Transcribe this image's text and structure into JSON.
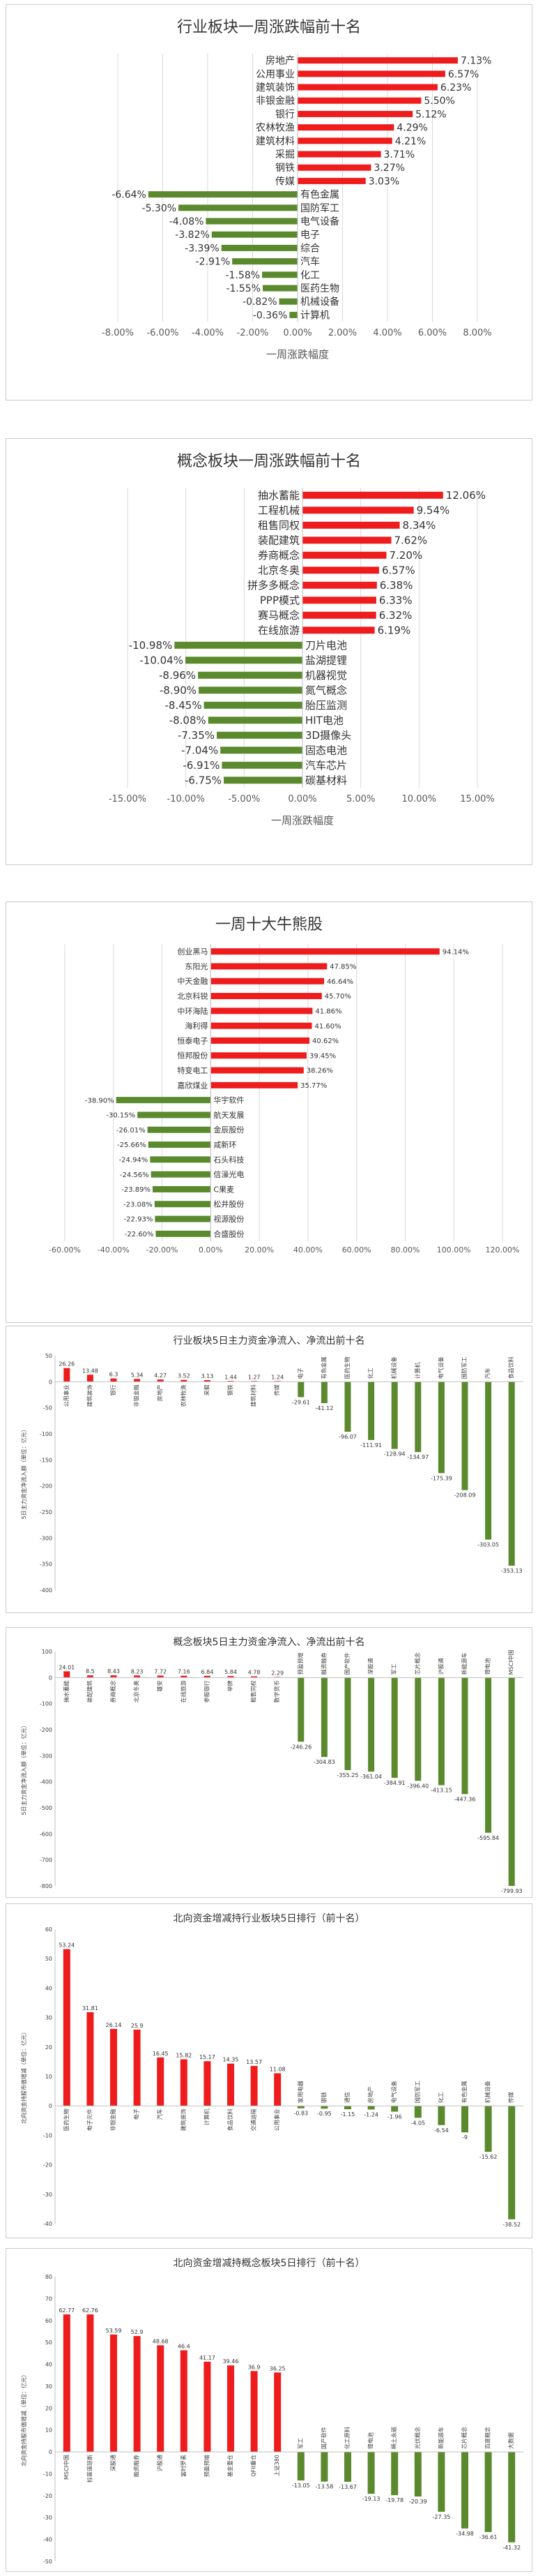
{
  "chart_data": [
    {
      "type": "bar",
      "orientation": "horizontal",
      "title": "行业板块一周涨跌幅前十名",
      "xlabel": "一周涨跌幅度",
      "xlim": [
        -8,
        8
      ],
      "xticks": [
        -8,
        -6,
        -4,
        -2,
        0,
        2,
        4,
        6,
        8
      ],
      "xtick_labels": [
        "-8.00%",
        "-6.00%",
        "-4.00%",
        "-2.00%",
        "0.00%",
        "2.00%",
        "4.00%",
        "6.00%",
        "8.00%"
      ],
      "categories": [
        "房地产",
        "公用事业",
        "建筑装饰",
        "非银金融",
        "银行",
        "农林牧渔",
        "建筑材料",
        "采掘",
        "钢铁",
        "传媒",
        "有色金属",
        "国防军工",
        "电气设备",
        "电子",
        "综合",
        "汽车",
        "化工",
        "医药生物",
        "机械设备",
        "计算机"
      ],
      "values": [
        7.13,
        6.57,
        6.23,
        5.5,
        5.12,
        4.29,
        4.21,
        3.71,
        3.27,
        3.03,
        -6.64,
        -5.3,
        -4.08,
        -3.82,
        -3.39,
        -2.91,
        -1.58,
        -1.55,
        -0.82,
        -0.36
      ],
      "labels": [
        "7.13%",
        "6.57%",
        "6.23%",
        "5.50%",
        "5.12%",
        "4.29%",
        "4.21%",
        "3.71%",
        "3.27%",
        "3.03%",
        "-6.64%",
        "-5.30%",
        "-4.08%",
        "-3.82%",
        "-3.39%",
        "-2.91%",
        "-1.58%",
        "-1.55%",
        "-0.82%",
        "-0.36%"
      ],
      "colors": {
        "positive": "#ee1c1c",
        "negative": "#5a8a2d"
      },
      "grid": true
    },
    {
      "type": "bar",
      "orientation": "horizontal",
      "title": "概念板块一周涨跌幅前十名",
      "xlabel": "一周涨跌幅度",
      "xlim": [
        -15,
        15
      ],
      "xticks": [
        -15,
        -10,
        -5,
        0,
        5,
        10,
        15
      ],
      "xtick_labels": [
        "-15.00%",
        "-10.00%",
        "-5.00%",
        "0.00%",
        "5.00%",
        "10.00%",
        "15.00%"
      ],
      "categories": [
        "抽水蓄能",
        "工程机械",
        "租售同权",
        "装配建筑",
        "券商概念",
        "北京冬奥",
        "拼多多概念",
        "PPP模式",
        "赛马概念",
        "在线旅游",
        "刀片电池",
        "盐湖提锂",
        "机器视觉",
        "氮气概念",
        "胎压监测",
        "HIT电池",
        "3D摄像头",
        "固态电池",
        "汽车芯片",
        "碳基材料"
      ],
      "values": [
        12.06,
        9.54,
        8.34,
        7.62,
        7.2,
        6.57,
        6.38,
        6.33,
        6.32,
        6.19,
        -10.98,
        -10.04,
        -8.96,
        -8.9,
        -8.45,
        -8.08,
        -7.35,
        -7.04,
        -6.91,
        -6.75
      ],
      "labels": [
        "12.06%",
        "9.54%",
        "8.34%",
        "7.62%",
        "7.20%",
        "6.57%",
        "6.38%",
        "6.33%",
        "6.32%",
        "6.19%",
        "-10.98%",
        "-10.04%",
        "-8.96%",
        "-8.90%",
        "-8.45%",
        "-8.08%",
        "-7.35%",
        "-7.04%",
        "-6.91%",
        "-6.75%"
      ],
      "colors": {
        "positive": "#ee1c1c",
        "negative": "#5a8a2d"
      },
      "grid": true
    },
    {
      "type": "bar",
      "orientation": "horizontal",
      "title": "一周十大牛熊股",
      "xlabel": "",
      "xlim": [
        -60,
        120
      ],
      "xticks": [
        -60,
        -40,
        -20,
        0,
        20,
        40,
        60,
        80,
        100,
        120
      ],
      "xtick_labels": [
        "-60.00%",
        "-40.00%",
        "-20.00%",
        "0.00%",
        "20.00%",
        "40.00%",
        "60.00%",
        "80.00%",
        "100.00%",
        "120.00%"
      ],
      "categories": [
        "创业黑马",
        "东阳光",
        "中天金融",
        "北京科锐",
        "中环海陆",
        "海利得",
        "恒泰电子",
        "恒邦股份",
        "特变电工",
        "嘉欣煤业",
        "华宇软件",
        "航天发展",
        "金辰股份",
        "咸新环",
        "石头科技",
        "信濠光电",
        "C果麦",
        "松井股份",
        "视源股份",
        "合盛股份"
      ],
      "values": [
        94.14,
        47.85,
        46.64,
        45.7,
        41.86,
        41.6,
        40.62,
        39.45,
        38.26,
        35.77,
        -38.9,
        -30.15,
        -26.01,
        -25.66,
        -24.94,
        -24.56,
        -23.89,
        -23.08,
        -22.93,
        -22.6
      ],
      "labels": [
        "94.14%",
        "47.85%",
        "46.64%",
        "45.70%",
        "41.86%",
        "41.60%",
        "40.62%",
        "39.45%",
        "38.26%",
        "35.77%",
        "-38.90%",
        "-30.15%",
        "-26.01%",
        "-25.66%",
        "-24.94%",
        "-24.56%",
        "-23.89%",
        "-23.08%",
        "-22.93%",
        "-22.60%"
      ],
      "colors": {
        "positive": "#ee1c1c",
        "negative": "#5a8a2d"
      },
      "grid": true
    },
    {
      "type": "bar",
      "orientation": "vertical",
      "title": "行业板块5日主力资金净流入、净流出前十名",
      "ylabel": "5日主力资金净流入额（单位：亿元）",
      "ylim": [
        -400,
        50
      ],
      "yticks": [
        50,
        0,
        -50,
        -100,
        -150,
        -200,
        -250,
        -300,
        -350,
        -400
      ],
      "categories": [
        "公用事业",
        "建筑装饰",
        "银行",
        "非银金融",
        "房地产",
        "农林牧渔",
        "采掘",
        "钢铁",
        "建筑材料",
        "传媒",
        "电子",
        "有色金属",
        "医药生物",
        "化工",
        "机械设备",
        "计算机",
        "电气设备",
        "国防军工",
        "汽车",
        "食品饮料"
      ],
      "values": [
        26.26,
        13.48,
        6.3,
        5.34,
        4.27,
        3.52,
        3.13,
        1.44,
        1.27,
        1.24,
        -29.61,
        -41.12,
        -96.07,
        -111.91,
        -128.94,
        -134.97,
        -175.39,
        -208.09,
        -303.05,
        -353.13
      ],
      "labels": [
        "26.26",
        "13.48",
        "6.3",
        "5.34",
        "4.27",
        "3.52",
        "3.13",
        "1.44",
        "1.27",
        "1.24",
        "-29.61",
        "-41.12",
        "-96.07",
        "-111.91",
        "-128.94",
        "-134.97",
        "-175.39",
        "-208.09",
        "-303.05",
        "-353.13"
      ],
      "colors": {
        "positive": "#ee1c1c",
        "negative": "#5a8a2d"
      },
      "grid": false
    },
    {
      "type": "bar",
      "orientation": "vertical",
      "title": "概念板块5日主力资金净流入、净流出前十名",
      "ylabel": "5日主力资金净流入额（单位：亿元）",
      "ylim": [
        -800,
        100
      ],
      "yticks": [
        100,
        0,
        -100,
        -200,
        -300,
        -400,
        -500,
        -600,
        -700,
        -800
      ],
      "categories": [
        "抽水蓄能",
        "装配建筑",
        "券商概念",
        "北京冬奥",
        "雄安",
        "在线旅游",
        "参股银行",
        "举牌",
        "租售同权",
        "数字货币",
        "预盈预增",
        "融资融券",
        "国产软件",
        "深股通",
        "军工",
        "芯片概念",
        "沪股通",
        "新能源车",
        "锂电池",
        "MSCI中国"
      ],
      "values": [
        24.01,
        8.5,
        8.43,
        8.23,
        7.72,
        7.16,
        6.84,
        5.84,
        4.78,
        2.29,
        -246.26,
        -304.83,
        -355.25,
        -361.04,
        -384.91,
        -396.4,
        -413.15,
        -447.36,
        -595.84,
        -799.93
      ],
      "labels": [
        "24.01",
        "8.5",
        "8.43",
        "8.23",
        "7.72",
        "7.16",
        "6.84",
        "5.84",
        "4.78",
        "2.29",
        "-246.26",
        "-304.83",
        "-355.25",
        "-361.04",
        "-384.91",
        "-396.40",
        "-413.15",
        "-447.36",
        "-595.84",
        "-799.93"
      ],
      "colors": {
        "positive": "#ee1c1c",
        "negative": "#5a8a2d"
      },
      "grid": false
    },
    {
      "type": "bar",
      "orientation": "vertical",
      "title": "北向资金增减持行业板块5日排行（前十名）",
      "ylabel": "北向资金持股市值增减（单位：亿元）",
      "ylim": [
        -40,
        60
      ],
      "yticks": [
        60,
        50,
        40,
        30,
        20,
        10,
        0,
        -10,
        -20,
        -30,
        -40
      ],
      "categories": [
        "医药生物",
        "电子元件",
        "非银金融",
        "电子",
        "汽车",
        "建筑装饰",
        "计算机",
        "食品饮料",
        "交通运输",
        "公用事业",
        "家用电器",
        "钢铁",
        "通信",
        "房地产",
        "电气设备",
        "国防军工",
        "化工",
        "有色金属",
        "机械设备",
        "传媒"
      ],
      "values": [
        53.24,
        31.81,
        26.14,
        25.9,
        16.45,
        15.82,
        15.17,
        14.35,
        13.57,
        11.08,
        -0.83,
        -0.95,
        -1.15,
        -1.24,
        -1.96,
        -4.05,
        -6.54,
        -9.0,
        -15.62,
        -38.52
      ],
      "labels": [
        "53.24",
        "31.81",
        "26.14",
        "25.9",
        "16.45",
        "15.82",
        "15.17",
        "14.35",
        "13.57",
        "11.08",
        "-0.83",
        "-0.95",
        "-1.15",
        "-1.24",
        "-1.96",
        "-4.05",
        "-6.54",
        "-9",
        "-15.62",
        "-38.52"
      ],
      "colors": {
        "positive": "#ee1c1c",
        "negative": "#5a8a2d"
      },
      "grid": false
    },
    {
      "type": "bar",
      "orientation": "vertical",
      "title": "北向资金增减持概念板块5日排行（前十名）",
      "ylabel": "北向资金持股市值增减（单位：亿元）",
      "ylim": [
        -50,
        80
      ],
      "yticks": [
        80,
        70,
        60,
        50,
        40,
        30,
        20,
        10,
        0,
        -10,
        -20,
        -30,
        -40,
        -50
      ],
      "categories": [
        "MSCI中国",
        "标普道琼斯",
        "深股通",
        "融资融券",
        "沪股通",
        "富时罗素",
        "预盈预增",
        "基金重仓",
        "QFII重仓",
        "上证380",
        "军工",
        "国产软件",
        "化工原料",
        "锂电池",
        "稀土永磁",
        "光伏概念",
        "新能源车",
        "芯片概念",
        "百度概念",
        "大数据"
      ],
      "values": [
        62.77,
        62.76,
        53.59,
        52.9,
        48.68,
        46.4,
        41.17,
        39.46,
        36.9,
        36.25,
        -13.05,
        -13.58,
        -13.67,
        -19.13,
        -19.78,
        -20.39,
        -27.35,
        -34.98,
        -36.61,
        -41.32
      ],
      "labels": [
        "62.77",
        "62.76",
        "53.59",
        "52.9",
        "48.68",
        "46.4",
        "41.17",
        "39.46",
        "36.9",
        "36.25",
        "-13.05",
        "-13.58",
        "-13.67",
        "-19.13",
        "-19.78",
        "-20.39",
        "-27.35",
        "-34.98",
        "-36.61",
        "-41.32"
      ],
      "colors": {
        "positive": "#ee1c1c",
        "negative": "#5a8a2d"
      },
      "grid": false
    }
  ]
}
